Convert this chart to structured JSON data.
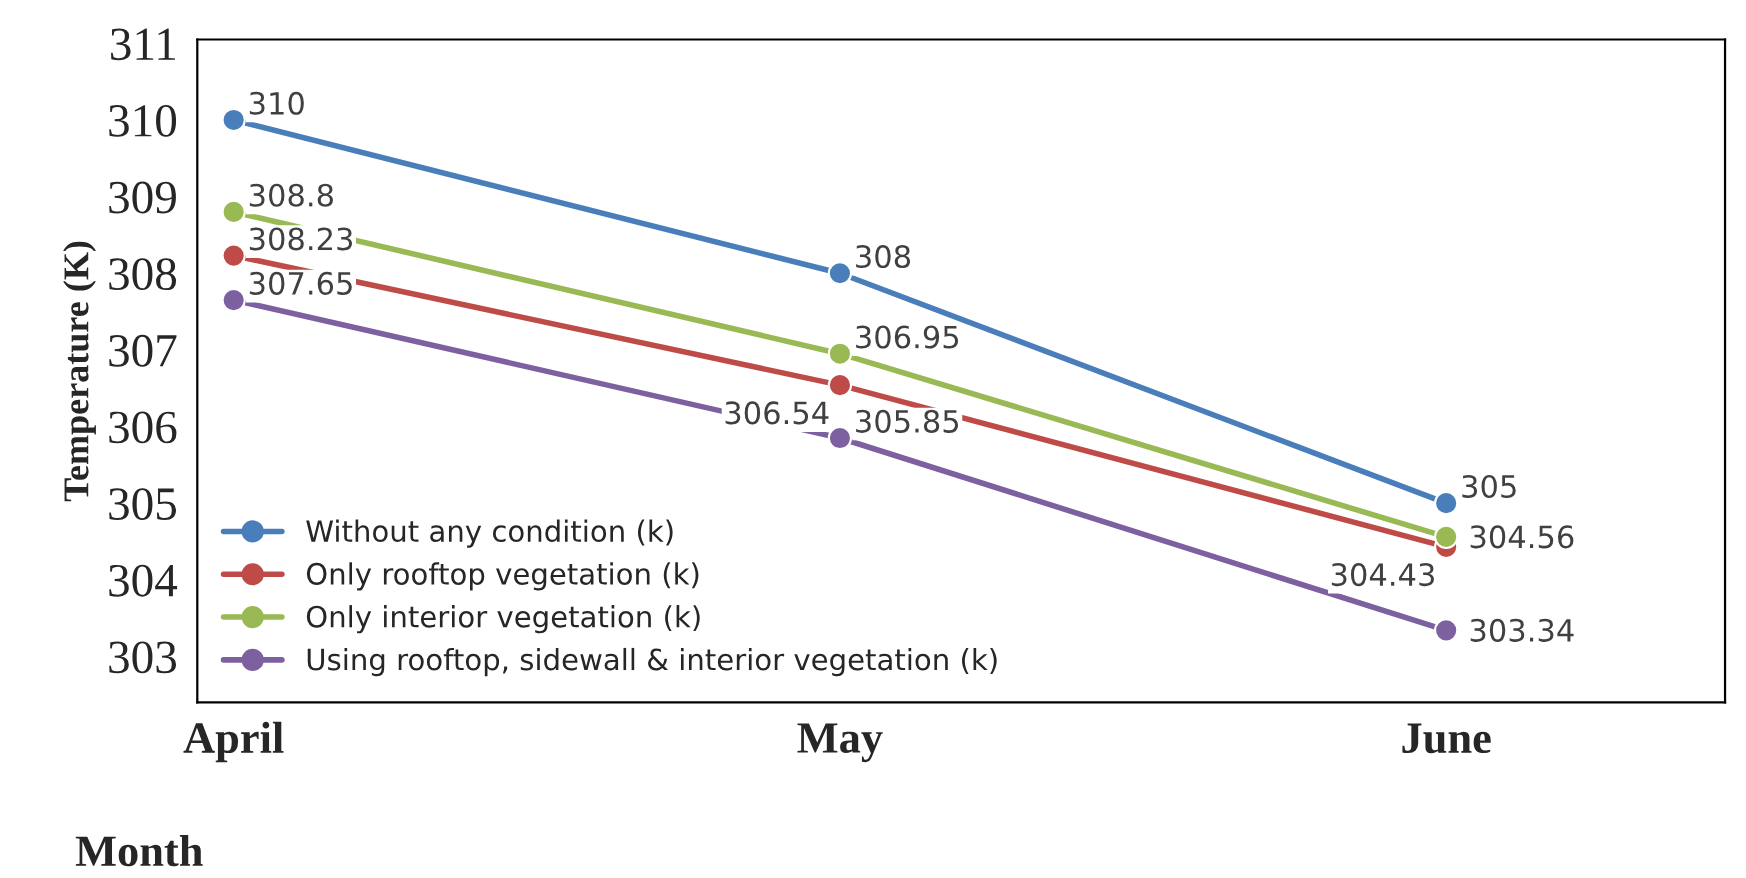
{
  "chart_data": {
    "type": "line",
    "xlabel": "Month",
    "ylabel": "Temperature (K)",
    "categories": [
      "April",
      "May",
      "June"
    ],
    "series": [
      {
        "name": "Without any condition (k)",
        "color": "#4a7ebb",
        "values": [
          310,
          308,
          305
        ]
      },
      {
        "name": "Only rooftop vegetation (k)",
        "color": "#be4b48",
        "values": [
          308.23,
          306.54,
          304.43
        ]
      },
      {
        "name": "Only interior vegetation (k)",
        "color": "#98b954",
        "values": [
          308.8,
          306.95,
          304.56
        ]
      },
      {
        "name": "Using rooftop, sidewall & interior vegetation (k)",
        "color": "#7d60a0",
        "values": [
          307.65,
          305.85,
          303.34
        ]
      }
    ],
    "ylim": [
      302.4,
      311.05
    ],
    "yticks": [
      303,
      304,
      305,
      306,
      307,
      308,
      309,
      310,
      311
    ],
    "data_labels": true,
    "legend": "left",
    "marker": "circle",
    "line_style": "solid",
    "grid": false
  }
}
